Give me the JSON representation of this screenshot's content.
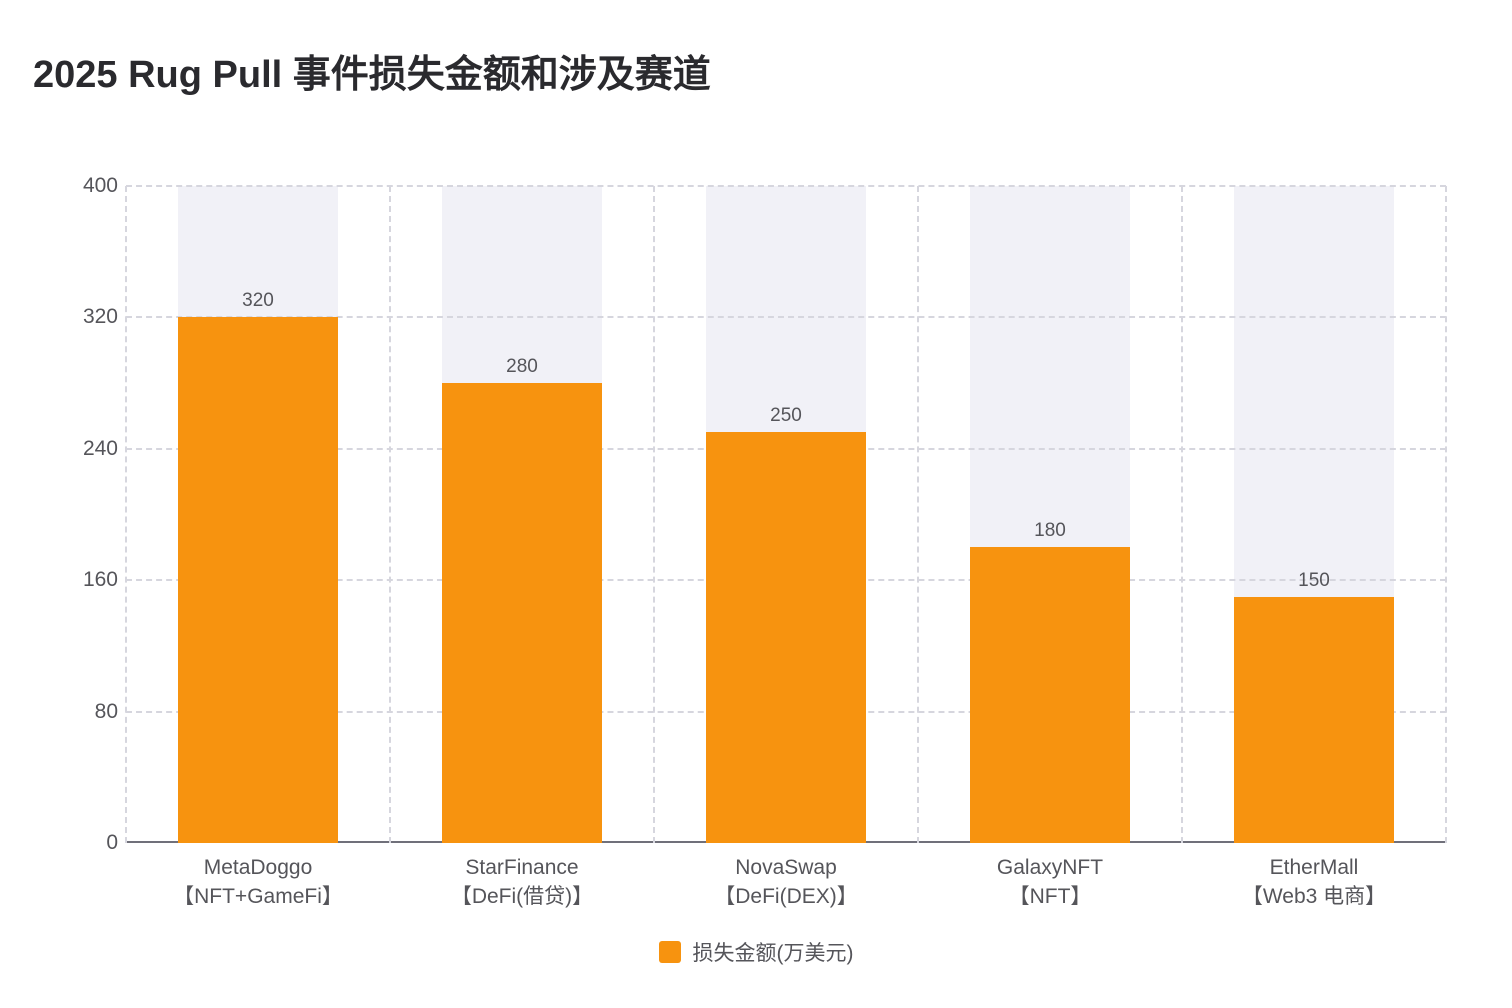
{
  "title": "2025 Rug Pull 事件损失金额和涉及赛道",
  "legend": {
    "label": "损失金额(万美元)"
  },
  "colors": {
    "bar": "#F7930F",
    "band": "#F1F1F7",
    "grid": "#D6D6DE",
    "axis_line": "#70707A",
    "text": "#55555A",
    "title_text": "#2A2A2E",
    "background": "#FFFFFF"
  },
  "y_axis": {
    "ticks": [
      400,
      320,
      240,
      160,
      80,
      0
    ]
  },
  "bars": [
    {
      "name": "MetaDoggo",
      "track": "【NFT+GameFi】",
      "value": 320,
      "value_label": "320"
    },
    {
      "name": "StarFinance",
      "track": "【DeFi(借贷)】",
      "value": 280,
      "value_label": "280"
    },
    {
      "name": "NovaSwap",
      "track": "【DeFi(DEX)】",
      "value": 250,
      "value_label": "250"
    },
    {
      "name": "GalaxyNFT",
      "track": "【NFT】",
      "value": 180,
      "value_label": "180"
    },
    {
      "name": "EtherMall",
      "track": "【Web3 电商】",
      "value": 150,
      "value_label": "150"
    }
  ],
  "chart_data": {
    "type": "bar",
    "title": "2025 Rug Pull 事件损失金额和涉及赛道",
    "categories": [
      "MetaDoggo【NFT+GameFi】",
      "StarFinance【DeFi(借贷)】",
      "NovaSwap【DeFi(DEX)】",
      "GalaxyNFT【NFT】",
      "EtherMall【Web3 电商】"
    ],
    "series": [
      {
        "name": "损失金额(万美元)",
        "values": [
          320,
          280,
          250,
          180,
          150
        ]
      }
    ],
    "value_labels": [
      320,
      280,
      250,
      180,
      150
    ],
    "xlabel": "",
    "ylabel": "",
    "ylim": [
      0,
      400
    ],
    "yticks": [
      0,
      80,
      160,
      240,
      320,
      400
    ],
    "grid": true,
    "grid_style": "dashed",
    "bar_color": "#F7930F",
    "bar_background_color": "#F1F1F7",
    "legend_position": "bottom"
  }
}
